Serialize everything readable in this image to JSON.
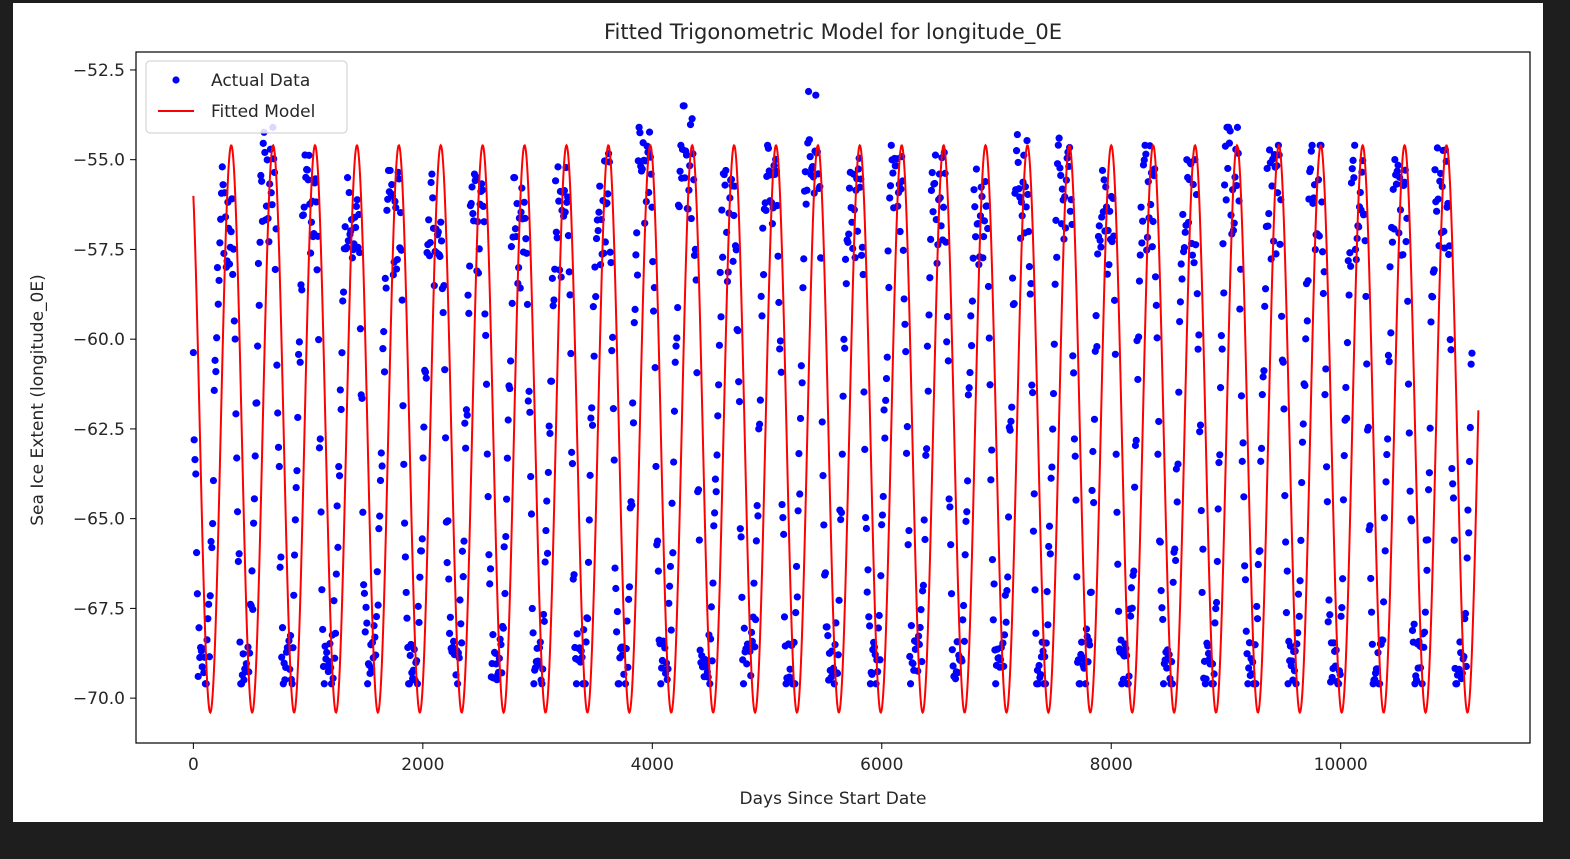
{
  "chart_data": {
    "type": "scatter",
    "title": "Fitted Trigonometric Model for longitude_0E",
    "xlabel": "Days Since Start Date",
    "ylabel": "Sea Ice Extent (longitude_0E)",
    "xlim": [
      -500,
      11650
    ],
    "ylim": [
      -71.25,
      -52.0
    ],
    "xticks": [
      0,
      2000,
      4000,
      6000,
      8000,
      10000
    ],
    "xtick_labels": [
      "0",
      "2000",
      "4000",
      "6000",
      "8000",
      "10000"
    ],
    "yticks": [
      -52.5,
      -55.0,
      -57.5,
      -60.0,
      -62.5,
      -65.0,
      -67.5,
      -70.0
    ],
    "ytick_labels": [
      "−52.5",
      "−55.0",
      "−57.5",
      "−60.0",
      "−62.5",
      "−65.0",
      "−67.5",
      "−70.0"
    ],
    "grid": false,
    "legend": "top-left",
    "series": [
      {
        "name": "Actual Data",
        "kind": "scatter",
        "color": "#0000ff",
        "description": "Daily observations, x from 0 to ~11150, oscillating between about -69.5 and a yearly peak of -55.5 to -53.1"
      },
      {
        "name": "Fitted Model",
        "kind": "line",
        "color": "#ff0000",
        "model": {
          "mean": -62.5,
          "amplitude": 7.9,
          "period_days": 365.25,
          "peak_day": 330,
          "x_range": [
            0,
            11200
          ]
        }
      }
    ],
    "yearly_peak_max": [
      -55.2,
      -54.1,
      -54.5,
      -55.5,
      -55.3,
      -55.4,
      -55.4,
      -55.5,
      -55.2,
      -54.8,
      -53.9,
      -53.5,
      -55.3,
      -54.6,
      -53.1,
      -54.6,
      -54.6,
      -54.8,
      -55.0,
      -54.3,
      -54.4,
      -55.3,
      -54.6,
      -55.0,
      -54.1,
      -54.6,
      -54.6,
      -54.6,
      -54.6,
      -54.6,
      -53.1,
      -54.6,
      -53.7,
      -54.3
    ]
  }
}
